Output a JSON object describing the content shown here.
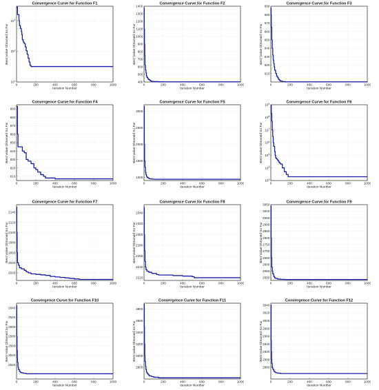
{
  "figure": {
    "accent_color": "#1a1aa8",
    "grid": true,
    "background": "#ffffff"
  },
  "chart_data": [
    {
      "id": "F1",
      "type": "line",
      "title": "Convergence Curve for Function F1",
      "xlabel": "Iteration Number",
      "ylabel": "Best Value Obtained So Far",
      "yscale": "log",
      "xlim": [
        0,
        1000
      ],
      "ylim": [
        10,
        3000
      ],
      "xticks": [
        0,
        200,
        400,
        600,
        800,
        1000
      ],
      "xtick_labels": [
        "0",
        "200",
        "400",
        "600",
        "800",
        "1000"
      ],
      "yticks": [
        10,
        100,
        1000
      ],
      "ytick_labels": [
        "10^1",
        "10^2",
        "10^3"
      ],
      "series": [
        {
          "x": [
            0,
            5,
            10,
            20,
            25,
            30,
            40,
            50,
            55,
            60,
            70,
            80,
            90,
            100,
            110,
            120,
            130,
            140,
            150,
            200,
            400,
            1000
          ],
          "y": [
            2800,
            2800,
            1600,
            1600,
            1000,
            700,
            560,
            450,
            350,
            240,
            200,
            180,
            140,
            105,
            80,
            60,
            45,
            35,
            32,
            32,
            32,
            32
          ]
        }
      ]
    },
    {
      "id": "F2",
      "type": "line",
      "title": "Convergence Curve for Function F2",
      "xlabel": "Iteration Number",
      "ylabel": "Best Value Obtained So Far",
      "xlim": [
        0,
        1000
      ],
      "ylim": [
        400,
        1400
      ],
      "xticks": [
        0,
        200,
        400,
        600,
        800,
        1000
      ],
      "xtick_labels": [
        "0",
        "200",
        "400",
        "600",
        "800",
        "1000"
      ],
      "yticks": [
        400,
        500,
        600,
        700,
        800,
        900,
        1000,
        1100,
        1200,
        1300,
        1400
      ],
      "ytick_labels": [
        "400",
        "500",
        "600",
        "700",
        "800",
        "900",
        "1000",
        "1100",
        "1200",
        "1300",
        "1400"
      ],
      "series": [
        {
          "x": [
            0,
            2,
            5,
            8,
            10,
            15,
            20,
            25,
            30,
            40,
            50,
            60,
            70,
            80,
            100,
            150,
            200,
            1000
          ],
          "y": [
            1380,
            1100,
            900,
            750,
            620,
            560,
            520,
            480,
            460,
            440,
            430,
            420,
            412,
            408,
            405,
            403,
            402,
            402
          ]
        }
      ]
    },
    {
      "id": "F3",
      "type": "line",
      "title": "Convergence Curve for Function F3",
      "xlabel": "Iteration Number",
      "ylabel": "Best Value Obtained So Far",
      "xlim": [
        0,
        1000
      ],
      "ylim": [
        600,
        690
      ],
      "xticks": [
        0,
        200,
        400,
        600,
        800,
        1000
      ],
      "xtick_labels": [
        "0",
        "200",
        "400",
        "600",
        "800",
        "1000"
      ],
      "yticks": [
        610,
        620,
        630,
        640,
        650,
        660,
        670,
        680,
        690
      ],
      "ytick_labels": [
        "610",
        "620",
        "630",
        "640",
        "650",
        "660",
        "670",
        "680",
        "690"
      ],
      "series": [
        {
          "x": [
            0,
            3,
            5,
            10,
            15,
            20,
            25,
            30,
            35,
            40,
            50,
            60,
            70,
            80,
            90,
            100,
            120,
            150,
            1000
          ],
          "y": [
            688,
            680,
            665,
            650,
            640,
            632,
            626,
            622,
            618,
            614,
            610,
            607,
            605,
            603,
            602,
            601,
            600.5,
            600.2,
            600.2
          ]
        }
      ]
    },
    {
      "id": "F4",
      "type": "line",
      "title": "Convergence Curve for Function F4",
      "xlabel": "Iteration Number",
      "ylabel": "Best Value Obtained So Far",
      "xlim": [
        0,
        1000
      ],
      "ylim": [
        805,
        895
      ],
      "xticks": [
        0,
        200,
        400,
        600,
        800,
        1000
      ],
      "xtick_labels": [
        "0",
        "200",
        "400",
        "600",
        "800",
        "1000"
      ],
      "yticks": [
        810,
        820,
        830,
        840,
        850,
        860,
        870,
        880,
        890
      ],
      "ytick_labels": [
        "810",
        "820",
        "830",
        "840",
        "850",
        "860",
        "870",
        "880",
        "890"
      ],
      "series": [
        {
          "x": [
            0,
            5,
            10,
            15,
            20,
            40,
            60,
            80,
            100,
            120,
            150,
            180,
            200,
            220,
            250,
            280,
            300,
            350,
            400,
            450,
            500,
            1000
          ],
          "y": [
            893,
            893,
            860,
            845,
            845,
            845,
            840,
            838,
            830,
            828,
            825,
            820,
            818,
            815,
            812,
            810,
            808,
            808,
            807,
            807,
            807,
            807
          ]
        }
      ]
    },
    {
      "id": "F5",
      "type": "line",
      "title": "Convergence Curve for Function F5",
      "xlabel": "Iteration Number",
      "ylabel": "Best Value Obtained So Far",
      "xlim": [
        0,
        1000
      ],
      "ylim": [
        900,
        3200
      ],
      "xticks": [
        0,
        200,
        400,
        600,
        800,
        1000
      ],
      "xtick_labels": [
        "0",
        "200",
        "400",
        "600",
        "800",
        "1000"
      ],
      "yticks": [
        1000,
        1500,
        2000,
        2500,
        3000
      ],
      "ytick_labels": [
        "1000",
        "1500",
        "2000",
        "2500",
        "3000"
      ],
      "series": [
        {
          "x": [
            0,
            3,
            6,
            10,
            15,
            20,
            25,
            30,
            40,
            50,
            60,
            80,
            100,
            150,
            1000
          ],
          "y": [
            3150,
            2000,
            1500,
            1300,
            1150,
            1080,
            1030,
            1000,
            980,
            960,
            950,
            945,
            940,
            940,
            940
          ]
        }
      ]
    },
    {
      "id": "F6",
      "type": "line",
      "title": "Convergence Curve for Function F6",
      "xlabel": "Iteration Number",
      "ylabel": "Best Value Obtained So Far",
      "yscale": "log",
      "xlim": [
        0,
        1000
      ],
      "ylim": [
        1000,
        1000000000
      ],
      "xticks": [
        0,
        200,
        400,
        600,
        800,
        1000
      ],
      "xtick_labels": [
        "0",
        "200",
        "400",
        "600",
        "800",
        "1000"
      ],
      "yticks": [
        1000,
        10000,
        100000,
        1000000,
        10000000,
        100000000,
        1000000000
      ],
      "ytick_labels": [
        "10^3",
        "10^4",
        "10^5",
        "10^6",
        "10^7",
        "10^8",
        "10^9"
      ],
      "series": [
        {
          "x": [
            0,
            5,
            10,
            15,
            20,
            25,
            30,
            40,
            45,
            50,
            60,
            70,
            80,
            90,
            100,
            120,
            140,
            160,
            180,
            200,
            1000
          ],
          "y": [
            900000000,
            200000000,
            50000000,
            10000000,
            3000000,
            1000000,
            500000,
            200000,
            100000,
            60000,
            50000,
            40000,
            30000,
            25000,
            20000,
            10000,
            5000,
            3000,
            2000,
            2000,
            2000
          ]
        }
      ]
    },
    {
      "id": "F7",
      "type": "line",
      "title": "Convergence Curve for Function F7",
      "xlabel": "Iteration Number",
      "ylabel": "Best Value Obtained So Far",
      "xlim": [
        0,
        1000
      ],
      "ylim": [
        2005,
        2155
      ],
      "xticks": [
        0,
        200,
        400,
        600,
        800,
        1000
      ],
      "xtick_labels": [
        "0",
        "200",
        "400",
        "600",
        "800",
        "1000"
      ],
      "yticks": [
        2020,
        2040,
        2060,
        2080,
        2100,
        2120,
        2140
      ],
      "ytick_labels": [
        "2020",
        "2040",
        "2060",
        "2080",
        "2100",
        "2120",
        "2140"
      ],
      "series": [
        {
          "x": [
            0,
            3,
            6,
            10,
            20,
            30,
            50,
            80,
            100,
            120,
            150,
            200,
            250,
            300,
            350,
            400,
            450,
            500,
            550,
            600,
            650,
            1000
          ],
          "y": [
            2150,
            2100,
            2060,
            2040,
            2035,
            2030,
            2028,
            2025,
            2022,
            2020,
            2018,
            2017,
            2016,
            2015,
            2013,
            2012,
            2011,
            2010,
            2009,
            2008,
            2007,
            2007
          ]
        }
      ]
    },
    {
      "id": "F8",
      "type": "line",
      "title": "Convergence Curve for Function F8",
      "xlabel": "Iteration Number",
      "ylabel": "Best Value Obtained So Far",
      "xlim": [
        0,
        1000
      ],
      "ylim": [
        2215,
        2355
      ],
      "xticks": [
        0,
        200,
        400,
        600,
        800,
        1000
      ],
      "xtick_labels": [
        "0",
        "200",
        "400",
        "600",
        "800",
        "1000"
      ],
      "yticks": [
        2220,
        2240,
        2260,
        2280,
        2300,
        2320,
        2340
      ],
      "ytick_labels": [
        "2220",
        "2240",
        "2260",
        "2280",
        "2300",
        "2320",
        "2340"
      ],
      "series": [
        {
          "x": [
            0,
            3,
            6,
            10,
            15,
            20,
            30,
            50,
            80,
            100,
            130,
            150,
            200,
            250,
            300,
            400,
            450,
            500,
            520,
            600,
            1000
          ],
          "y": [
            2350,
            2300,
            2270,
            2250,
            2240,
            2235,
            2232,
            2230,
            2228,
            2228,
            2226,
            2225,
            2225,
            2225,
            2224,
            2223,
            2223,
            2222,
            2220,
            2220,
            2220
          ]
        }
      ]
    },
    {
      "id": "F9",
      "type": "line",
      "title": "Convergence Curve for Function F9",
      "xlabel": "Iteration Number",
      "ylabel": "Best Value Obtained So Far",
      "xlim": [
        0,
        1000
      ],
      "ylim": [
        2480,
        3050
      ],
      "xticks": [
        0,
        200,
        400,
        600,
        800,
        1000
      ],
      "xtick_labels": [
        "0",
        "200",
        "400",
        "600",
        "800",
        "1000"
      ],
      "yticks": [
        2500,
        2550,
        2600,
        2650,
        2700,
        2750,
        2800,
        2850,
        2900,
        2950,
        3000,
        3050
      ],
      "ytick_labels": [
        "2500",
        "2550",
        "2600",
        "2650",
        "2700",
        "2750",
        "2800",
        "2850",
        "2900",
        "2950",
        "3000",
        "3050"
      ],
      "series": [
        {
          "x": [
            0,
            3,
            6,
            10,
            15,
            20,
            30,
            40,
            50,
            70,
            100,
            150,
            1000
          ],
          "y": [
            3040,
            2800,
            2650,
            2580,
            2550,
            2530,
            2510,
            2500,
            2495,
            2490,
            2488,
            2487,
            2487
          ]
        }
      ]
    },
    {
      "id": "F10",
      "type": "line",
      "title": "Convergence Curve for Function F10",
      "xlabel": "Iteration Number",
      "ylabel": "Best Value Obtained So Far",
      "xlim": [
        0,
        1000
      ],
      "ylim": [
        2490,
        2650
      ],
      "xticks": [
        0,
        200,
        400,
        600,
        800,
        1000
      ],
      "xtick_labels": [
        "0",
        "200",
        "400",
        "600",
        "800",
        "1000"
      ],
      "yticks": [
        2520,
        2540,
        2560,
        2580,
        2600,
        2620,
        2640
      ],
      "ytick_labels": [
        "2520",
        "2540",
        "2560",
        "2580",
        "2600",
        "2620",
        "2640"
      ],
      "series": [
        {
          "x": [
            0,
            3,
            5,
            8,
            10,
            15,
            20,
            30,
            40,
            50,
            70,
            100,
            150,
            1000
          ],
          "y": [
            2645,
            2580,
            2550,
            2535,
            2525,
            2515,
            2510,
            2506,
            2504,
            2503,
            2502,
            2501,
            2501,
            2501
          ]
        }
      ]
    },
    {
      "id": "F11",
      "type": "line",
      "title": "Convergence Curve for Function F11",
      "xlabel": "Iteration Number",
      "ylabel": "Best Value Obtained So Far",
      "xlim": [
        0,
        1000
      ],
      "ylim": [
        2600,
        3900
      ],
      "xticks": [
        0,
        200,
        400,
        600,
        800,
        1000
      ],
      "xtick_labels": [
        "0",
        "200",
        "400",
        "600",
        "800",
        "1000"
      ],
      "yticks": [
        2800,
        3000,
        3200,
        3400,
        3600,
        3800
      ],
      "ytick_labels": [
        "2800",
        "3000",
        "3200",
        "3400",
        "3600",
        "3800"
      ],
      "series": [
        {
          "x": [
            0,
            3,
            5,
            8,
            10,
            15,
            20,
            25,
            30,
            40,
            50,
            60,
            80,
            100,
            150,
            1000
          ],
          "y": [
            3880,
            3500,
            3200,
            3000,
            2900,
            2820,
            2760,
            2720,
            2700,
            2680,
            2660,
            2650,
            2640,
            2630,
            2620,
            2620
          ]
        }
      ]
    },
    {
      "id": "F12",
      "type": "line",
      "title": "Convergence Curve for Function F12",
      "xlabel": "Iteration Number",
      "ylabel": "Best Value Obtained So Far",
      "xlim": [
        0,
        1000
      ],
      "ylim": [
        2850,
        3045
      ],
      "xticks": [
        0,
        200,
        400,
        600,
        800,
        1000
      ],
      "xtick_labels": [
        "0",
        "200",
        "400",
        "600",
        "800",
        "1000"
      ],
      "yticks": [
        2880,
        2900,
        2920,
        2940,
        2960,
        2980,
        3000,
        3020,
        3040
      ],
      "ytick_labels": [
        "2880",
        "2900",
        "2920",
        "2940",
        "2960",
        "2980",
        "3000",
        "3020",
        "3040"
      ],
      "series": [
        {
          "x": [
            0,
            3,
            5,
            8,
            10,
            15,
            20,
            30,
            40,
            50,
            70,
            100,
            150,
            1000
          ],
          "y": [
            3040,
            2950,
            2920,
            2900,
            2890,
            2880,
            2875,
            2870,
            2868,
            2866,
            2865,
            2864,
            2864,
            2864
          ]
        }
      ]
    }
  ]
}
